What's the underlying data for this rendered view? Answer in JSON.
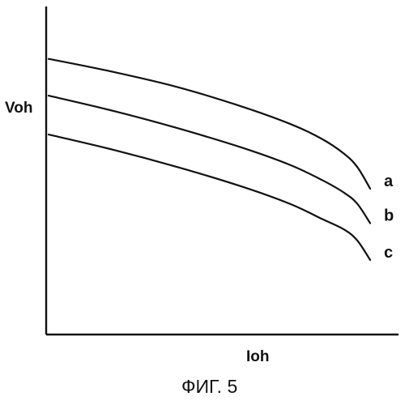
{
  "chart_data": {
    "type": "line",
    "xlabel": "Ioh",
    "ylabel": "Voh",
    "caption": "ФИГ. 5",
    "xlim": [
      0,
      1
    ],
    "ylim": [
      0,
      1
    ],
    "grid": false,
    "x_tick_labels": false,
    "y_tick_labels": false,
    "series": [
      {
        "name": "a",
        "x": [
          0,
          0.2,
          0.4,
          0.6,
          0.75,
          0.85,
          0.92,
          0.96,
          1.0
        ],
        "y": [
          0.99,
          0.93,
          0.86,
          0.77,
          0.69,
          0.62,
          0.55,
          0.49,
          0.39
        ]
      },
      {
        "name": "b",
        "x": [
          0,
          0.2,
          0.4,
          0.6,
          0.75,
          0.85,
          0.92,
          0.96,
          1.0
        ],
        "y": [
          0.82,
          0.75,
          0.67,
          0.58,
          0.5,
          0.43,
          0.37,
          0.32,
          0.23
        ]
      },
      {
        "name": "c",
        "x": [
          0,
          0.2,
          0.4,
          0.6,
          0.75,
          0.85,
          0.92,
          0.96,
          1.0
        ],
        "y": [
          0.64,
          0.57,
          0.49,
          0.4,
          0.32,
          0.25,
          0.2,
          0.15,
          0.06
        ]
      }
    ]
  }
}
